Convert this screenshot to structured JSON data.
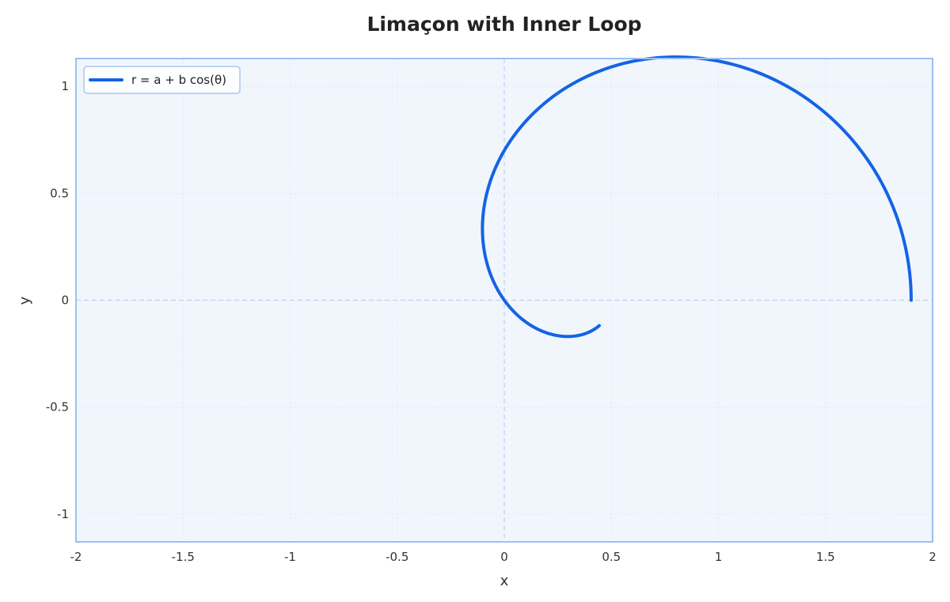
{
  "chart_data": {
    "type": "line",
    "title": "Limaçon with Inner Loop",
    "xlabel": "x",
    "ylabel": "y",
    "xlim": [
      -2,
      2
    ],
    "ylim": [
      -1.13,
      1.13
    ],
    "x_ticks": [
      -2,
      -1.5,
      -1,
      -0.5,
      0,
      0.5,
      1,
      1.5,
      2
    ],
    "x_tick_labels": [
      "-2",
      "-1.5",
      "-1",
      "-0.5",
      "0",
      "0.5",
      "1",
      "1.5",
      "2"
    ],
    "y_ticks": [
      -1,
      -0.5,
      0,
      0.5,
      1
    ],
    "y_tick_labels": [
      "-1",
      "-0.5",
      "0",
      "0.5",
      "1"
    ],
    "grid": true,
    "legend_position": "top-left",
    "series": [
      {
        "name": "r = a + b cos(θ)",
        "color": "#1463e6",
        "equation": {
          "a": 0.7,
          "b": 1.2
        },
        "theta_range_deg": [
          0,
          165
        ],
        "x": [
          1.9,
          1.8,
          1.55,
          1.2,
          0.8,
          0.56,
          0.35,
          0.18,
          0.05,
          -0.04,
          -0.095,
          -0.1,
          -0.08
        ],
        "y": [
          0.0,
          0.43,
          0.82,
          1.03,
          1.13,
          1.07,
          0.99,
          0.87,
          0.72,
          0.56,
          0.38,
          0.31,
          0.18
        ]
      }
    ],
    "colors": {
      "plot_background": "#f1f6fd",
      "frame": "#9dc0ef",
      "grid": "#dce7f6",
      "zero_line": "#c4d9f5",
      "legend_border": "#a9c7f2"
    }
  }
}
